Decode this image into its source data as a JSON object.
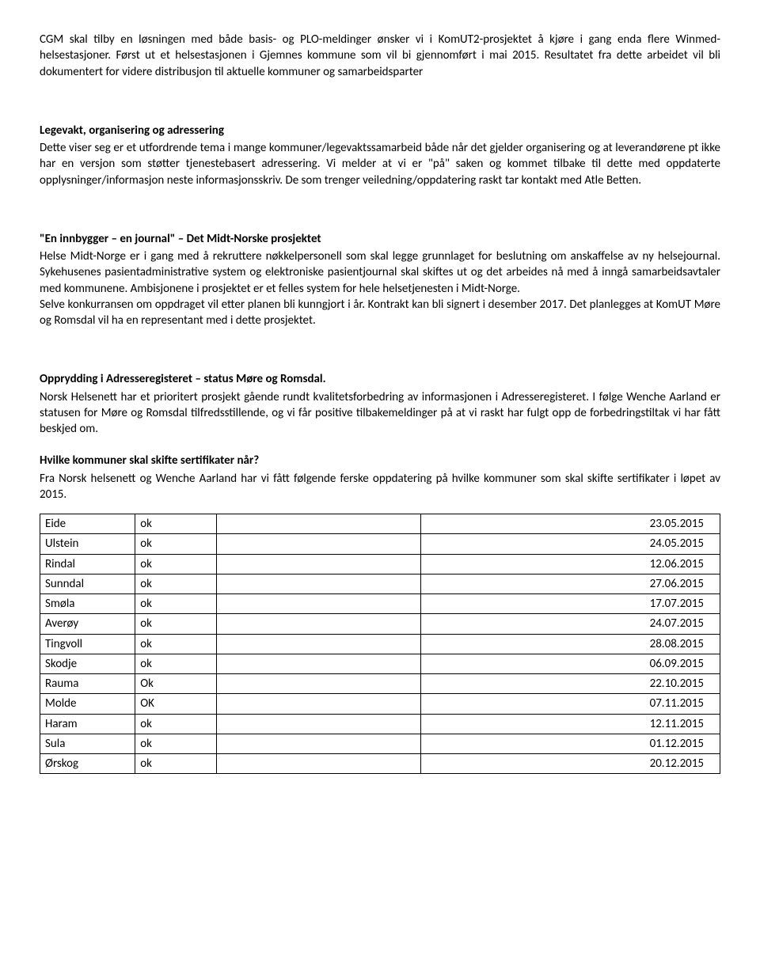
{
  "paragraphs": {
    "p1": "CGM skal tilby en løsningen med både basis- og PLO-meldinger ønsker vi i KomUT2-prosjektet å kjøre i gang enda flere Winmed-helsestasjoner. Først ut et helsestasjonen i Gjemnes kommune som vil bi gjennomført i mai 2015. Resultatet fra dette arbeidet vil bli dokumentert for videre distribusjon til aktuelle kommuner og samarbeidsparter",
    "h1": "Legevakt, organisering og adressering",
    "p2": "Dette viser seg er et utfordrende tema i mange kommuner/legevaktssamarbeid både når det gjelder organisering og at leverandørene pt ikke har en versjon som støtter tjenestebasert adressering. Vi melder at vi er \"på\" saken og kommet tilbake til dette med oppdaterte opplysninger/informasjon neste informasjonsskriv. De som trenger veiledning/oppdatering raskt tar kontakt med Atle Betten.",
    "h2": "\"En innbygger – en journal\" – Det Midt-Norske prosjektet",
    "p3": "Helse Midt-Norge er i gang med å rekruttere nøkkelpersonell som skal legge grunnlaget for beslutning om anskaffelse av ny helsejournal. Sykehusenes pasientadministrative system og elektroniske pasientjournal skal skiftes ut og det arbeides nå med å inngå samarbeidsavtaler med kommunene. Ambisjonene i prosjektet er et felles system for hele helsetjenesten i Midt-Norge.",
    "p4": "Selve konkurransen om oppdraget vil etter planen bli kunngjort i år. Kontrakt kan bli signert i desember 2017. Det planlegges at KomUT Møre og Romsdal vil ha en representant med i dette prosjektet.",
    "h3": "Opprydding i Adresseregisteret – status Møre og Romsdal.",
    "p5": "Norsk Helsenett har et prioritert prosjekt gående rundt kvalitetsforbedring av informasjonen i Adresseregisteret. I følge Wenche Aarland er statusen for Møre og Romsdal tilfredsstillende, og vi får positive tilbakemeldinger på at vi raskt har fulgt opp de forbedringstiltak vi har fått beskjed om.",
    "h4": "Hvilke kommuner skal skifte sertifikater når?",
    "p6": "Fra Norsk helsenett og Wenche Aarland har vi fått følgende ferske oppdatering på hvilke kommuner som skal skifte sertifikater i løpet av 2015."
  },
  "table": {
    "rows": [
      {
        "kommune": "Eide",
        "status": "ok",
        "dato": "23.05.2015"
      },
      {
        "kommune": "Ulstein",
        "status": "ok",
        "dato": "24.05.2015"
      },
      {
        "kommune": "Rindal",
        "status": "ok",
        "dato": "12.06.2015"
      },
      {
        "kommune": "Sunndal",
        "status": "ok",
        "dato": "27.06.2015"
      },
      {
        "kommune": "Smøla",
        "status": "ok",
        "dato": "17.07.2015"
      },
      {
        "kommune": "Averøy",
        "status": "ok",
        "dato": "24.07.2015"
      },
      {
        "kommune": "Tingvoll",
        "status": "ok",
        "dato": "28.08.2015"
      },
      {
        "kommune": "Skodje",
        "status": "ok",
        "dato": "06.09.2015"
      },
      {
        "kommune": "Rauma",
        "status": "Ok",
        "dato": "22.10.2015"
      },
      {
        "kommune": "Molde",
        "status": "OK",
        "dato": "07.11.2015"
      },
      {
        "kommune": "Haram",
        "status": "ok",
        "dato": "12.11.2015"
      },
      {
        "kommune": "Sula",
        "status": "ok",
        "dato": "01.12.2015"
      },
      {
        "kommune": "Ørskog",
        "status": "ok",
        "dato": "20.12.2015"
      }
    ]
  }
}
